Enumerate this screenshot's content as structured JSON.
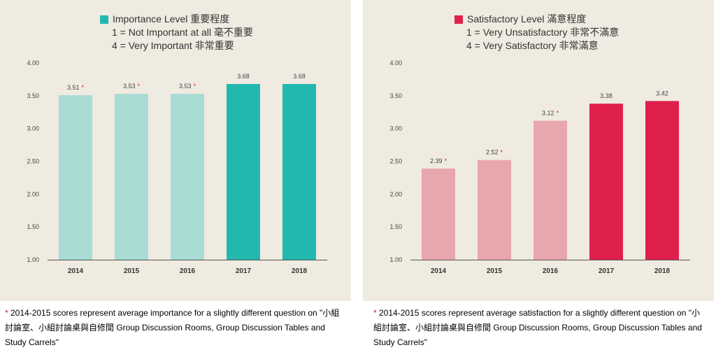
{
  "charts": [
    {
      "id": "importance",
      "legend": {
        "title": "Importance Level 重要程度",
        "line1": "1 = Not Important at all 毫不重要",
        "line2": "4 = Very Important 非常重要",
        "color": "#22b8b0"
      },
      "footnote": {
        "star": "*",
        "text": " 2014-2015 scores represent average importance for a slightly different question on \"小組討論室、小組討論桌與自修間 Group Discussion Rooms, Group Discussion Tables and Study Carrels\""
      }
    },
    {
      "id": "satisfaction",
      "legend": {
        "title": "Satisfactory Level 滿意程度",
        "line1": "1 = Very Unsatisfactory 非常不滿意",
        "line2": "4 = Very Satisfactory 非常滿意",
        "color": "#e0204c"
      },
      "footnote": {
        "star": "*",
        "text": " 2014-2015 scores represent average satisfaction for a slightly different question on \"小組討論室、小組討論桌與自修間 Group Discussion Rooms, Group Discussion Tables and Study Carrels\""
      }
    }
  ],
  "chart_data": [
    {
      "type": "bar",
      "categories": [
        "2014",
        "2015",
        "2016",
        "2017",
        "2018"
      ],
      "values": [
        3.51,
        3.53,
        3.53,
        3.68,
        3.68
      ],
      "data_labels": [
        "3.51",
        "3.53",
        "3.53",
        "3.68",
        "3.68"
      ],
      "starred": [
        true,
        true,
        true,
        false,
        false
      ],
      "ylim": [
        1.0,
        4.0
      ],
      "yticks": [
        "1.00",
        "1.50",
        "2.00",
        "2.50",
        "3.00",
        "3.50",
        "4.00"
      ],
      "grid": false,
      "colors": {
        "light": "#a8dcd4",
        "dark": "#22b8b0"
      },
      "star_symbol": "*",
      "star_color": "#e0192b"
    },
    {
      "type": "bar",
      "categories": [
        "2014",
        "2015",
        "2016",
        "2017",
        "2018"
      ],
      "values": [
        2.39,
        2.52,
        3.12,
        3.38,
        3.42
      ],
      "data_labels": [
        "2.39",
        "2.52",
        "3.12",
        "3.38",
        "3.42"
      ],
      "starred": [
        true,
        true,
        true,
        false,
        false
      ],
      "ylim": [
        1.0,
        4.0
      ],
      "yticks": [
        "1.00",
        "1.50",
        "2.00",
        "2.50",
        "3.00",
        "3.50",
        "4.00"
      ],
      "grid": false,
      "colors": {
        "light": "#e8a6ad",
        "dark": "#e0204c"
      },
      "star_symbol": "*",
      "star_color": "#e0192b"
    }
  ]
}
